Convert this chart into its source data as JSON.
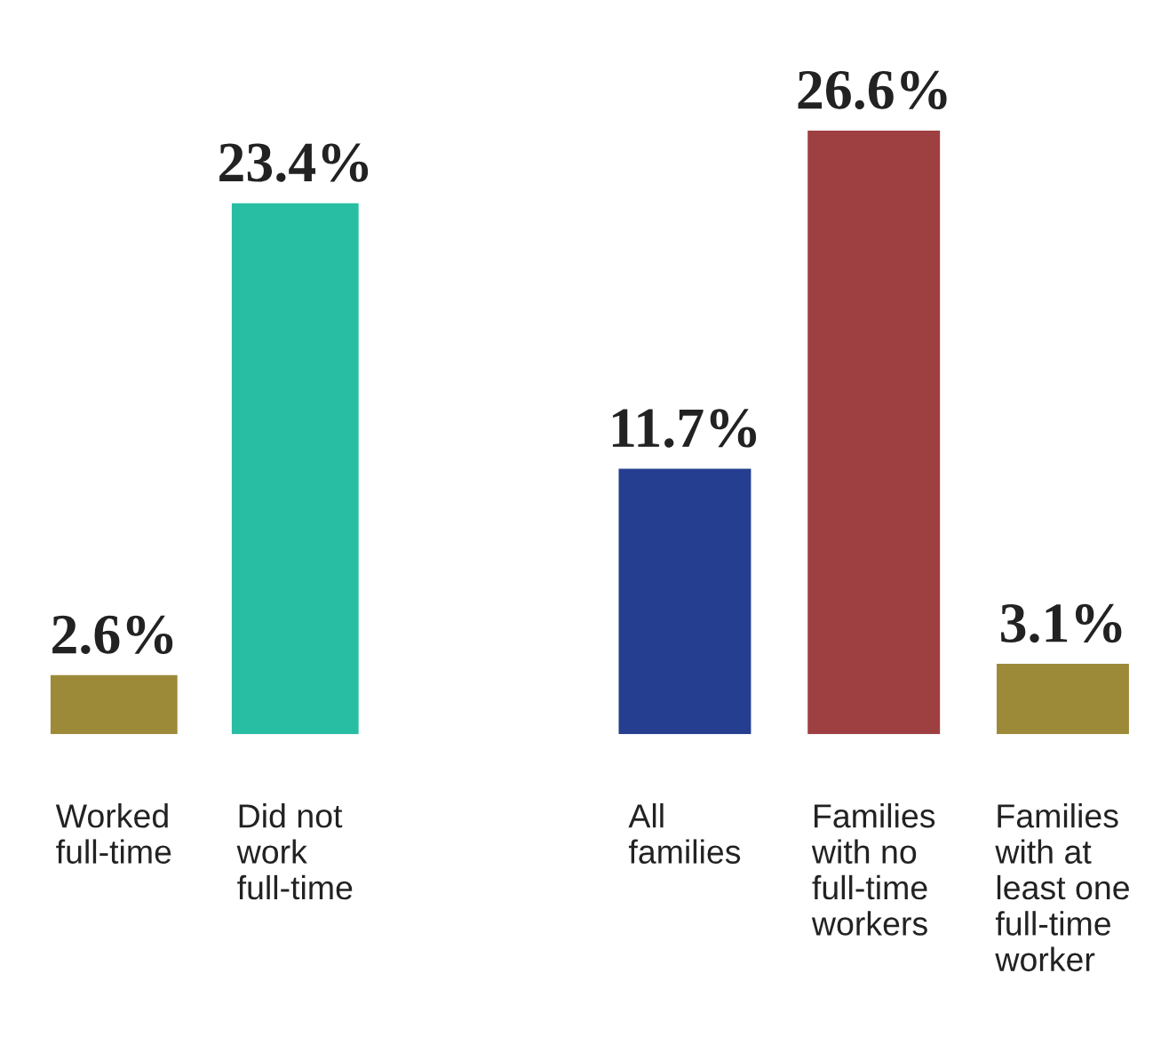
{
  "chart_data": [
    {
      "type": "bar",
      "categories": [
        "Worked\nfull-time",
        "Did not\nwork\nfull-time"
      ],
      "values": [
        2.6,
        23.4
      ],
      "colors": [
        "#9c8a38",
        "#27bea3"
      ],
      "value_labels": [
        "2.6%",
        "23.4%"
      ]
    },
    {
      "type": "bar",
      "categories": [
        "All\nfamilies",
        "Families\nwith no\nfull-time\nworkers",
        "Families\nwith at\nleast one\nfull-time\nworker"
      ],
      "values": [
        11.7,
        26.6,
        3.1
      ],
      "colors": [
        "#253e90",
        "#9e3f42",
        "#9c8a38"
      ],
      "value_labels": [
        "11.7%",
        "26.6%",
        "3.1%"
      ]
    }
  ]
}
